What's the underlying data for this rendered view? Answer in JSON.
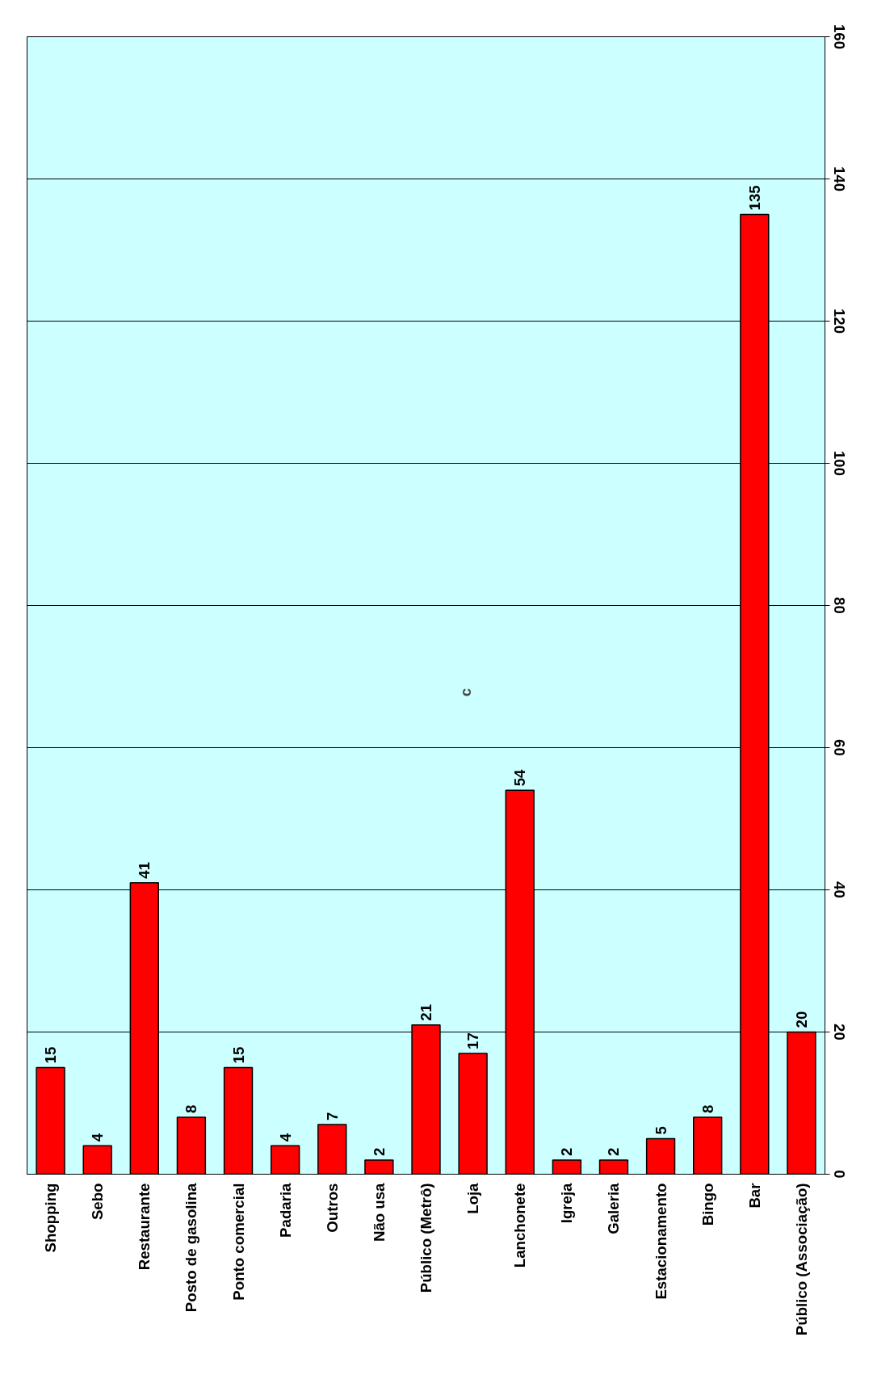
{
  "chart_data": {
    "type": "bar",
    "categories": [
      "Shopping",
      "Sebo",
      "Restaurante",
      "Posto de gasolina",
      "Ponto comercial",
      "Padaria",
      "Outros",
      "Não usa",
      "Público (Metrô)",
      "Loja",
      "Lanchonete",
      "Igreja",
      "Galeria",
      "Estacionamento",
      "Bingo",
      "Bar",
      "Público (Associação)"
    ],
    "values": [
      15,
      4,
      41,
      8,
      15,
      4,
      7,
      2,
      21,
      17,
      54,
      2,
      2,
      5,
      8,
      135,
      20
    ],
    "color": "#ff0000",
    "ylim": [
      0,
      160
    ],
    "yticks": [
      0,
      20,
      40,
      60,
      80,
      100,
      120,
      140,
      160
    ],
    "grid": "y",
    "data_labels": true,
    "annotations": [
      "c"
    ]
  }
}
